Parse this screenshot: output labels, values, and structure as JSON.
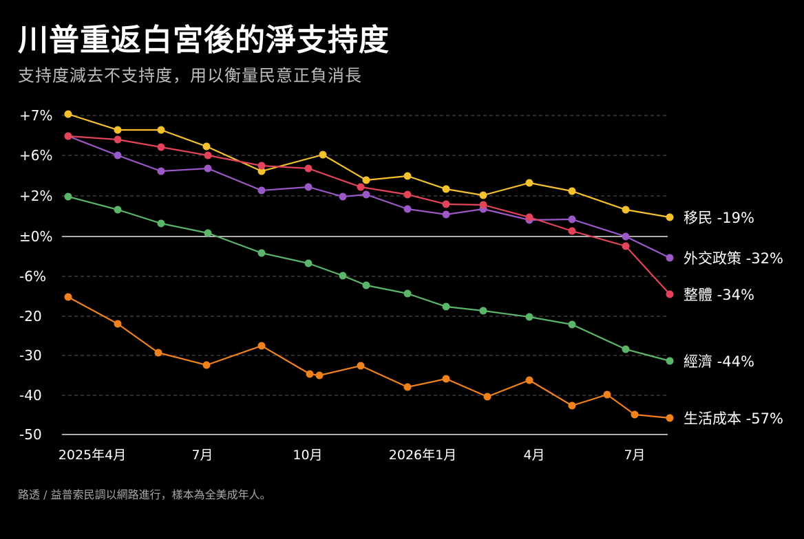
{
  "title": "川普重返白宮後的淨支持度",
  "subtitle": "支持度減去不支持度，用以衡量民意正負消長",
  "source": "路透 / 益普索民調以網路進行，樣本為全美成年人。",
  "chart_data": {
    "type": "line",
    "title": "川普重返白宮後的淨支持度",
    "subtitle": "支持度減去不支持度，用以衡量民意正負消長",
    "y_tick_labels": [
      "+7%",
      "+6%",
      "+2%",
      "±0%",
      "-6%",
      "-20",
      "-30",
      "-40",
      "-50"
    ],
    "x_tick_labels": [
      "2025年4月",
      "7月",
      "10月",
      "2026年1月",
      "4月",
      "7月"
    ],
    "x_tick_months": [
      3,
      6,
      9,
      12,
      15,
      18
    ],
    "grid": true,
    "legend": "end-of-line labels, right",
    "x": [
      3.0,
      4.25,
      5.25,
      6.25,
      7.5,
      8.5,
      9.25,
      10.25,
      11.0,
      12.0,
      13.0,
      14.25,
      15.25,
      16.25,
      17.25,
      18.25
    ],
    "series": [
      {
        "name": "移民",
        "label": "移民 -19%",
        "color": "#f5c12e",
        "x": [
          3.0,
          4.25,
          5.25,
          6.25,
          7.5,
          8.5,
          9.25,
          10.25,
          11.0,
          12.0,
          13.0,
          14.25,
          15.25,
          16.25,
          17.25,
          18.25
        ],
        "values": [
          7.1,
          6.3,
          6.3,
          5.3,
          3.3,
          4.9,
          2.8,
          3.0,
          2.3,
          2.0,
          2.7,
          2.2,
          1.3,
          1.0,
          null,
          null
        ]
      },
      {
        "name": "外交政策",
        "label": "外交政策 -32%",
        "color": "#9b59c7",
        "x": [
          3.0,
          4.25,
          5.25,
          6.25,
          7.5,
          8.5,
          9.25,
          10.25,
          11.0,
          12.0,
          13.0,
          14.25,
          15.25,
          16.25,
          17.25,
          18.25
        ],
        "values": [
          null,
          null,
          null,
          null,
          null,
          null,
          null,
          null,
          null,
          null,
          null,
          null,
          null,
          null,
          null,
          null
        ]
      },
      {
        "name": "整體",
        "label": "整體 -34%",
        "color": "#e3445a",
        "x": [
          3.0,
          4.25,
          5.25,
          6.25,
          7.5,
          8.5,
          9.25,
          10.25,
          11.0,
          12.0,
          13.0,
          14.25,
          15.25,
          16.25,
          17.25,
          18.25
        ],
        "values": [
          null,
          null,
          null,
          null,
          null,
          null,
          null,
          null,
          null,
          null,
          null,
          null,
          null,
          null,
          null,
          null
        ]
      },
      {
        "name": "經濟",
        "label": "經濟 -44%",
        "color": "#5bb56a",
        "x": [
          3.0,
          4.25,
          5.25,
          6.25,
          7.5,
          8.5,
          9.25,
          10.25,
          11.0,
          12.0,
          13.0,
          14.25,
          15.25,
          16.25,
          17.25,
          18.25
        ],
        "values": [
          null,
          null,
          null,
          null,
          null,
          null,
          null,
          null,
          null,
          null,
          null,
          null,
          null,
          null,
          null,
          null
        ]
      },
      {
        "name": "生活成本",
        "label": "生活成本 -57%",
        "color": "#f0821e",
        "x": [
          3.0,
          4.25,
          5.25,
          6.25,
          7.5,
          8.5,
          9.25,
          10.25,
          11.0,
          12.0,
          13.0,
          14.25,
          15.25,
          16.25,
          17.25,
          18.25
        ],
        "values": [
          null,
          null,
          null,
          null,
          null,
          null,
          null,
          null,
          null,
          null,
          null,
          null,
          null,
          null,
          null,
          null
        ]
      }
    ],
    "series_level": [
      {
        "name": "移民",
        "x": [
          3.0,
          4.25,
          5.25,
          6.25,
          7.5,
          8.5,
          9.0,
          10.25,
          11.25,
          12.25,
          13.25,
          14.25,
          15.25,
          16.25,
          17.25,
          18.25
        ],
        "values": [
          7.06,
          6.65,
          6.65,
          6.23,
          5.33,
          6.03,
          null,
          5.23,
          5.32,
          4.98,
          4.82,
          5.13,
          4.91,
          4.45,
          4.28,
          null
        ],
        "level": [
          0.06,
          0.65,
          0.65,
          1.23,
          2.33,
          1.03,
          null,
          3.23,
          3.32,
          3.98,
          4.18,
          3.77,
          3.91,
          4.45,
          4.68,
          null
        ]
      }
    ]
  },
  "plot": {
    "levels": [
      0,
      1,
      2,
      3,
      4,
      5,
      6,
      7,
      8
    ],
    "months": [
      3.0,
      4.25,
      5.25,
      6.25,
      7.5,
      8.5,
      9.5,
      10.25,
      10.5,
      11.0,
      11.5,
      12.25,
      13.0,
      14.25,
      15.0,
      16.0,
      16.5,
      17.25,
      18.25
    ],
    "lines": [
      {
        "name": "移民",
        "label": "移民 -19%",
        "color": "#f5c12e",
        "months": [
          3.0,
          4.25,
          5.25,
          6.25,
          7.5,
          8.5,
          9.5,
          10.25,
          11.25,
          12.25,
          13.25,
          14.25,
          15.25,
          16.25,
          17.25,
          18.25
        ],
        "levels": [
          -0.06,
          0.35,
          0.35,
          0.77,
          1.67,
          0.97,
          1.61,
          1.52,
          1.86,
          2.02,
          1.69,
          1.91,
          2.37,
          2.54,
          2.89,
          null
        ],
        "final": 2.54
      }
    ]
  }
}
